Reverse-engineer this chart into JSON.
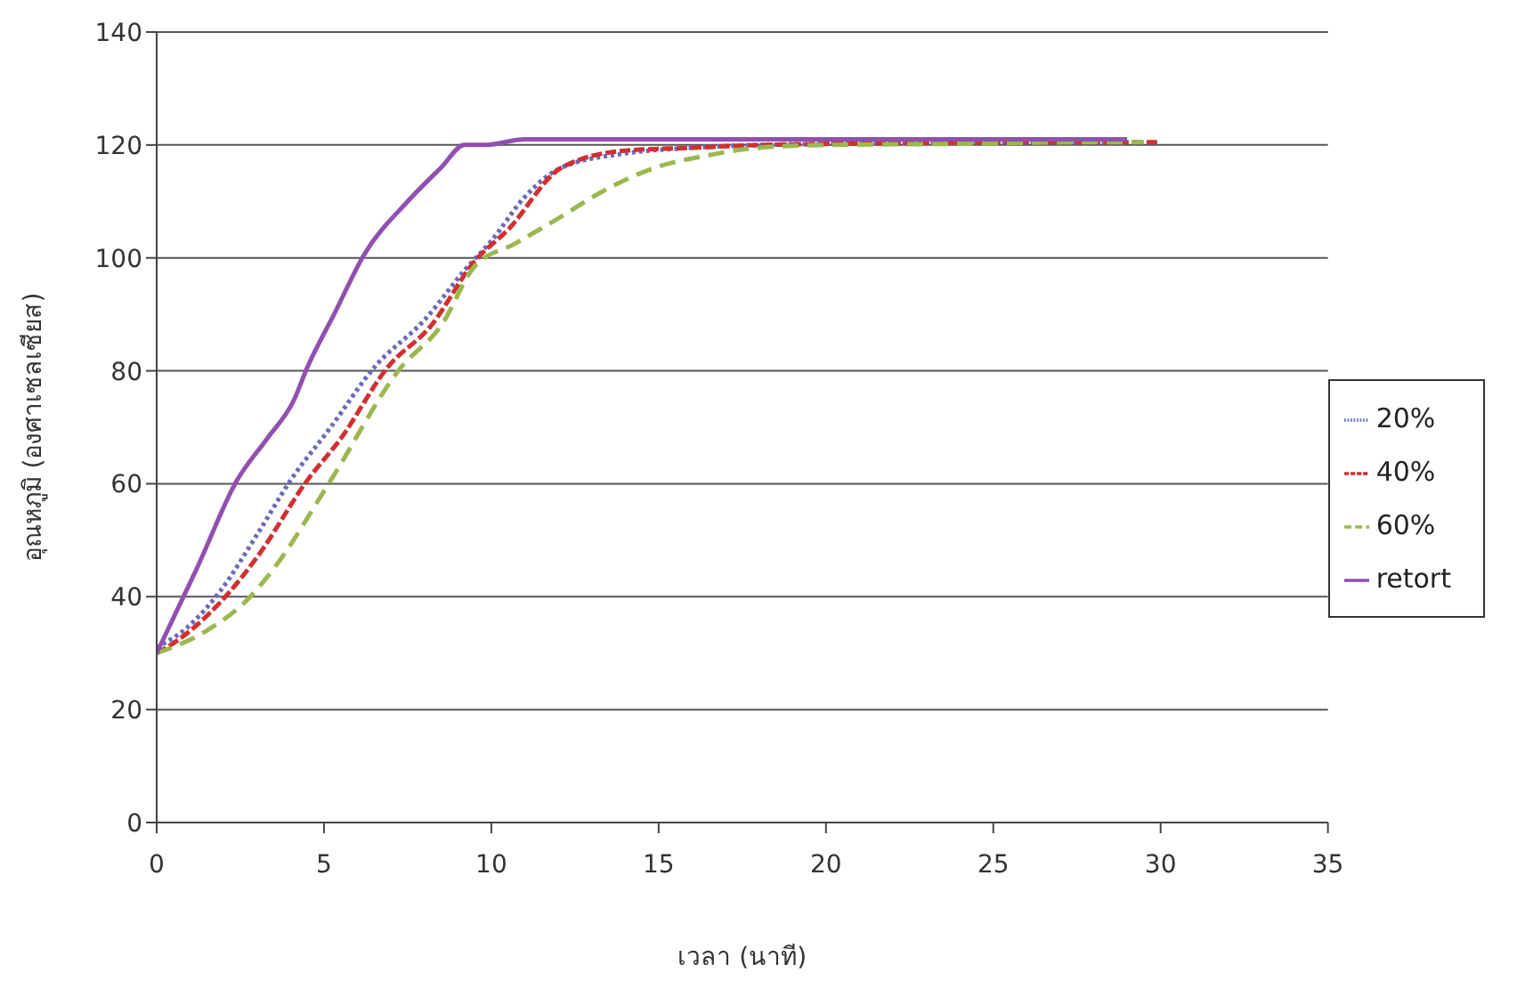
{
  "chart_data": {
    "type": "line",
    "xlabel": "เวลา (นาที)",
    "ylabel": "อุณหภูมิ (องศาเซลเซียส)",
    "xlim": [
      0,
      35
    ],
    "xticks": [
      0,
      5,
      10,
      15,
      20,
      25,
      30,
      35
    ],
    "ylim": [
      0,
      140
    ],
    "yticks": [
      0,
      20,
      40,
      60,
      80,
      100,
      120,
      140
    ],
    "grid": "y",
    "legend": "right",
    "marker": "none",
    "series": [
      {
        "name": "20%",
        "color": "#6a6ab8",
        "line_style": "dotted",
        "x": [
          0,
          1,
          1.9,
          3,
          4,
          5.2,
          6.5,
          8,
          9.3,
          10,
          11,
          12.1,
          14,
          16,
          18,
          22,
          26,
          29
        ],
        "values": [
          31,
          35,
          41,
          51,
          60.6,
          70,
          80.6,
          89,
          98.5,
          103,
          110.8,
          116,
          118.5,
          119.5,
          120,
          120.3,
          120.5,
          120.5
        ]
      },
      {
        "name": "40%",
        "color": "#d03030",
        "line_style": "dashed",
        "x": [
          0,
          0.3,
          1.9,
          3,
          4.5,
          5.5,
          6.9,
          8.2,
          9.5,
          10.5,
          12.1,
          14,
          16,
          18,
          22,
          26,
          30
        ],
        "values": [
          30,
          31,
          39,
          47,
          60.6,
          68,
          80.6,
          88,
          99.4,
          105,
          116,
          119,
          119.5,
          120,
          120.3,
          120.5,
          120.5
        ]
      },
      {
        "name": "60%",
        "color": "#9ab850",
        "line_style": "longdash",
        "x": [
          0,
          1.5,
          2.8,
          3.5,
          5.2,
          7.3,
          8.5,
          9.5,
          10.7,
          12,
          13.3,
          14.9,
          16.5,
          17.8,
          20,
          24,
          28,
          29.5
        ],
        "values": [
          30,
          34,
          40,
          45,
          60.6,
          80.6,
          88,
          98.5,
          102.5,
          107,
          111.7,
          116,
          118.2,
          119.4,
          120,
          120.2,
          120.5,
          120.5
        ]
      },
      {
        "name": "retort",
        "color": "#9050b0",
        "line_style": "solid",
        "x": [
          0,
          1.2,
          2.4,
          3.3,
          4.1,
          4.5,
          5.3,
          6.2,
          7.5,
          8.5,
          9.2,
          9.8,
          11,
          13,
          20,
          25,
          29
        ],
        "values": [
          30,
          45,
          60.6,
          68,
          74.8,
          80.6,
          90,
          100.6,
          110,
          116,
          120,
          120,
          121,
          121,
          121,
          121,
          121
        ]
      }
    ]
  }
}
